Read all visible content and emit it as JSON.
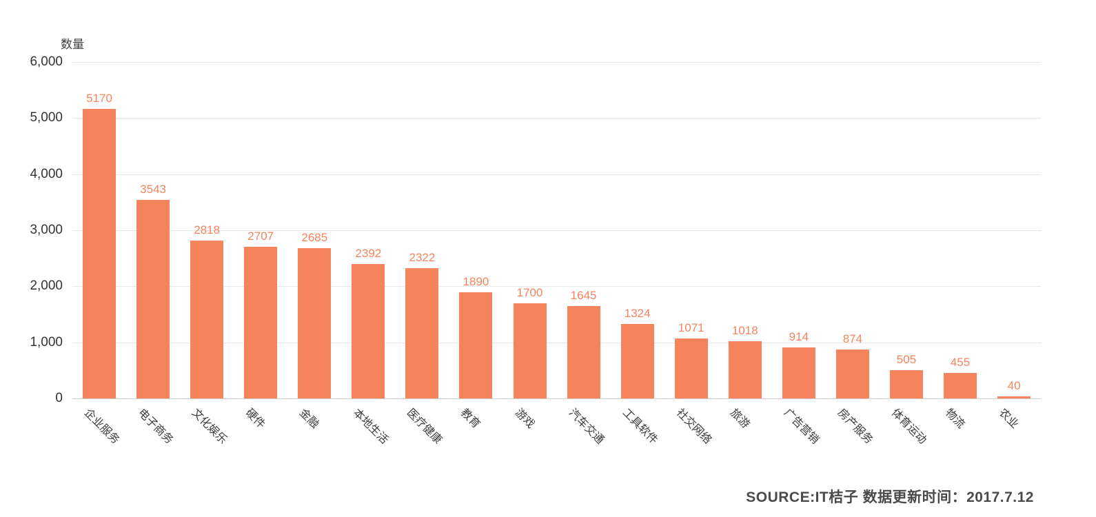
{
  "chart_data": {
    "type": "bar",
    "title": "",
    "xlabel": "",
    "ylabel": "数量",
    "categories": [
      "企业服务",
      "电子商务",
      "文化娱乐",
      "硬件",
      "金融",
      "本地生活",
      "医疗健康",
      "教育",
      "游戏",
      "汽车交通",
      "工具软件",
      "社交网络",
      "旅游",
      "广告营销",
      "房产服务",
      "体育运动",
      "物流",
      "农业"
    ],
    "values": [
      5170,
      3543,
      2818,
      2707,
      2685,
      2392,
      2322,
      1890,
      1700,
      1645,
      1324,
      1071,
      1018,
      914,
      874,
      505,
      455,
      40
    ],
    "ylim": [
      0,
      6000
    ],
    "y_tick_labels": [
      "0",
      "1,000",
      "2,000",
      "3,000",
      "4,000",
      "5,000",
      "6,000"
    ],
    "y_tick_values": [
      0,
      1000,
      2000,
      3000,
      4000,
      5000,
      6000
    ],
    "grid": true,
    "legend": "none",
    "bar_color": "#F5845C",
    "value_label_color": "#F5845C",
    "category_label_rotation_deg": 45
  },
  "footer": {
    "source_text": "SOURCE:IT桔子 数据更新时间：2017.7.12"
  }
}
